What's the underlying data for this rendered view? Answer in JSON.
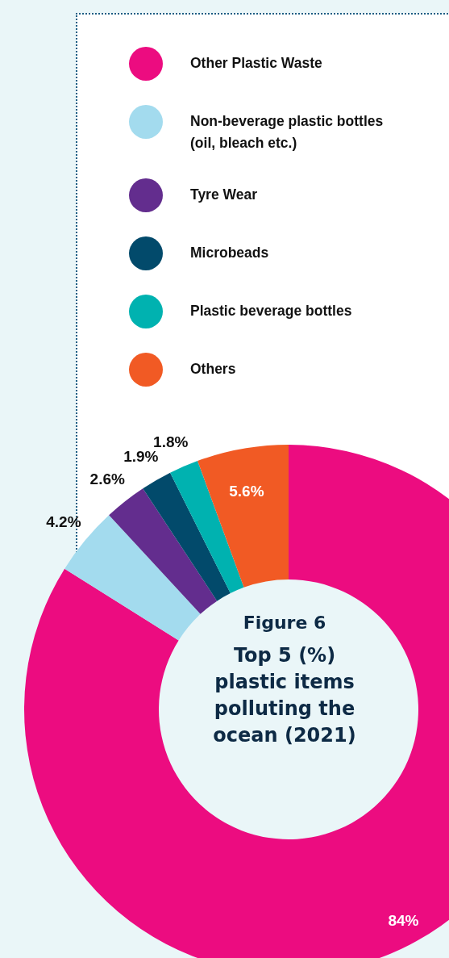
{
  "chart_data": {
    "type": "donut",
    "title": "Top 5 (%) plastic items polluting the ocean (2021)",
    "subtitle": "Figure 6",
    "categories": [
      "Other Plastic Waste",
      "Non-beverage plastic bottles (oil, bleach etc.)",
      "Tyre Wear",
      "Microbeads",
      "Plastic beverage bottles",
      "Others"
    ],
    "values": [
      84,
      4.2,
      2.6,
      1.9,
      1.8,
      5.6
    ],
    "colors": [
      "#ec0c80",
      "#a3dbee",
      "#632d8e",
      "#024a6b",
      "#00b2b0",
      "#f15a24"
    ],
    "value_labels": [
      "84%",
      "4.2%",
      "2.6%",
      "1.9%",
      "1.8%",
      "5.6%"
    ],
    "legend": "top"
  }
}
